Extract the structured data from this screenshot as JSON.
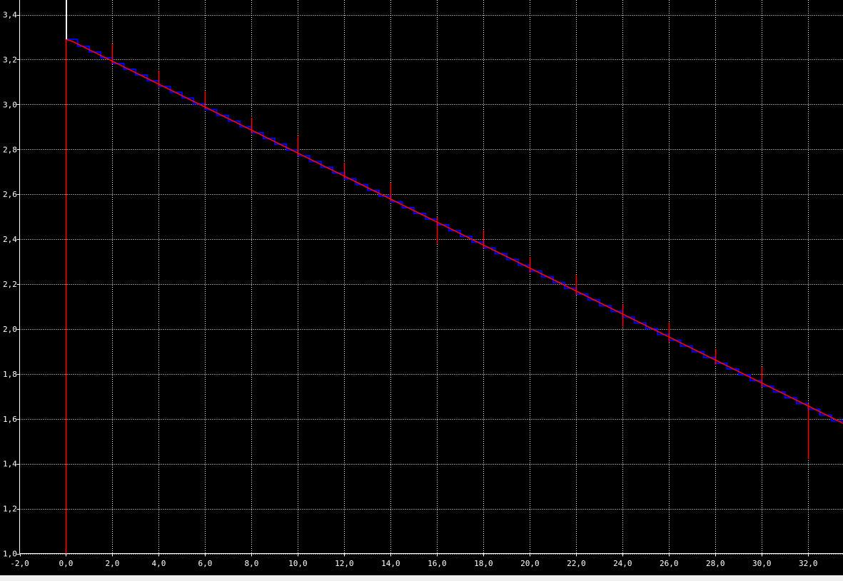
{
  "colors": {
    "background": "#000000",
    "grid": "#ffffff",
    "axis": "#ffffff",
    "step_line": "#0000ff",
    "model_line": "#ff0000",
    "error_bar": "#ff0000",
    "origin_marker": "#ffffff",
    "tick_label": "#ffffff",
    "bottom_strip": "#f0f0f0"
  },
  "chart_data": {
    "type": "line",
    "title": "",
    "xlabel": "",
    "ylabel": "",
    "grid": true,
    "grid_style": "dotted",
    "xlim": [
      -2.0,
      33.5
    ],
    "ylim": [
      1.0,
      3.4
    ],
    "x_ticks": [
      -2,
      0,
      2,
      4,
      6,
      8,
      10,
      12,
      14,
      16,
      18,
      20,
      22,
      24,
      26,
      28,
      30,
      32
    ],
    "x_tick_labels": [
      "-2,0",
      "0,0",
      "2,0",
      "4,0",
      "6,0",
      "8,0",
      "10,0",
      "12,0",
      "14,0",
      "16,0",
      "18,0",
      "20,0",
      "22,0",
      "24,0",
      "26,0",
      "28,0",
      "30,0",
      "32,0"
    ],
    "y_ticks": [
      1.0,
      1.2,
      1.4,
      1.6,
      1.8,
      2.0,
      2.2,
      2.4,
      2.6,
      2.8,
      3.0,
      3.2,
      3.4
    ],
    "y_tick_labels": [
      "1,0",
      "1,2",
      "1,4",
      "1,6",
      "1,8",
      "2,0",
      "2,2",
      "2,4",
      "2,6",
      "2,8",
      "3,0",
      "3,2",
      "3,4"
    ],
    "series": [
      {
        "style": "step",
        "color": "#0000ff",
        "x_start": 0.0,
        "x_end": 33.5,
        "bin_width": 0.5,
        "y_start": 3.29,
        "y_end": 1.57,
        "points": [
          [
            0.0,
            3.29
          ],
          [
            0.3,
            3.28
          ],
          [
            33.5,
            1.57
          ]
        ]
      },
      {
        "style": "line",
        "color": "#ff0000",
        "points": [
          [
            0.0,
            1.0
          ],
          [
            0.0,
            3.29
          ],
          [
            0.3,
            3.28
          ],
          [
            33.5,
            1.58
          ]
        ]
      }
    ],
    "error_bars": [
      {
        "x": 2,
        "y": 3.2,
        "low": 3.18,
        "high": 3.27
      },
      {
        "x": 4,
        "y": 3.1,
        "low": 3.08,
        "high": 3.15
      },
      {
        "x": 6,
        "y": 3.0,
        "low": 2.98,
        "high": 3.06
      },
      {
        "x": 8,
        "y": 2.89,
        "low": 2.87,
        "high": 2.94
      },
      {
        "x": 10,
        "y": 2.79,
        "low": 2.77,
        "high": 2.86
      },
      {
        "x": 12,
        "y": 2.69,
        "low": 2.67,
        "high": 2.74
      },
      {
        "x": 14,
        "y": 2.59,
        "low": 2.57,
        "high": 2.65
      },
      {
        "x": 16,
        "y": 2.48,
        "low": 2.38,
        "high": 2.5
      },
      {
        "x": 18,
        "y": 2.38,
        "low": 2.36,
        "high": 2.44
      },
      {
        "x": 20,
        "y": 2.28,
        "low": 2.25,
        "high": 2.32
      },
      {
        "x": 22,
        "y": 2.17,
        "low": 2.15,
        "high": 2.24
      },
      {
        "x": 24,
        "y": 2.07,
        "low": 2.01,
        "high": 2.11
      },
      {
        "x": 26,
        "y": 1.97,
        "low": 1.94,
        "high": 2.03
      },
      {
        "x": 28,
        "y": 1.86,
        "low": 1.84,
        "high": 1.91
      },
      {
        "x": 30,
        "y": 1.76,
        "low": 1.74,
        "high": 1.83
      },
      {
        "x": 32,
        "y": 1.65,
        "low": 1.42,
        "high": 1.67
      }
    ],
    "origin_marker": {
      "x": 0.0,
      "y_from": 3.29,
      "y_to": 3.4
    }
  }
}
